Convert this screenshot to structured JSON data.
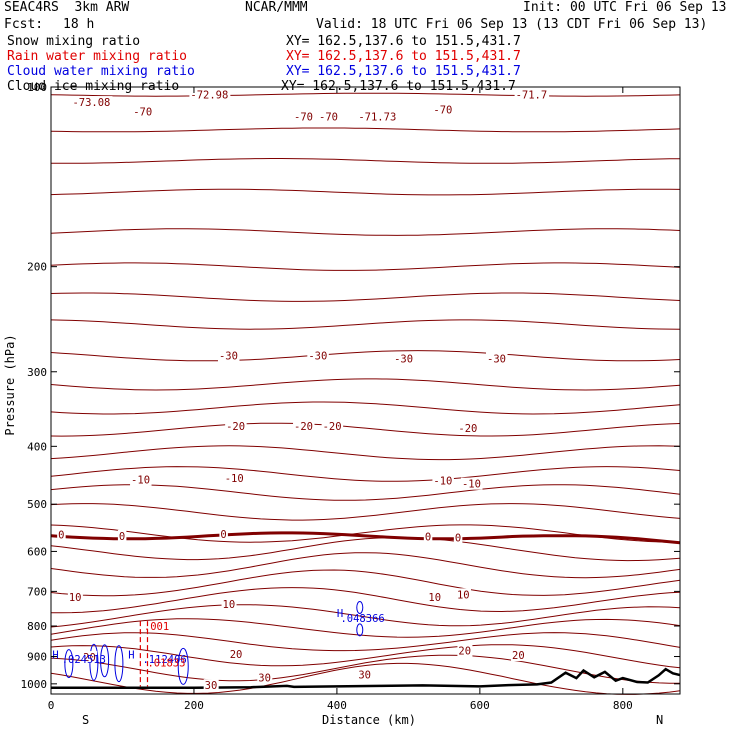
{
  "header": {
    "model": "SEAC4RS  3km ARW",
    "center": "NCAR/MMM",
    "init": "Init: 00 UTC Fri 06 Sep 13",
    "fcst_label": "Fcst:",
    "fcst_value": "18 h",
    "valid": "Valid: 18 UTC Fri 06 Sep 13 (13 CDT Fri 06 Sep 13)"
  },
  "fields": [
    {
      "name": "Snow mixing ratio",
      "xy": "XY= 162.5,137.6 to 151.5,431.7",
      "color": "#000000"
    },
    {
      "name": "Rain water mixing ratio",
      "xy": "XY= 162.5,137.6 to 151.5,431.7",
      "color": "#e00000"
    },
    {
      "name": "Cloud water mixing ratio",
      "xy": "XY= 162.5,137.6 to 151.5,431.7",
      "color": "#0000e0"
    },
    {
      "name": "Cloud ice mixing ratio",
      "xy": "XY= 162.5,137.6 to 151.5,431.7",
      "color": "#000000"
    }
  ],
  "colors": {
    "isotherm": "#800000",
    "zero_isotherm": "#800000",
    "rain": "#e00000",
    "cloud_water": "#0000e0",
    "terrain": "#000000"
  },
  "chart_data": {
    "type": "line",
    "xlabel": "Distance (km)",
    "ylabel": "Pressure (hPa)",
    "xlim": [
      0,
      880
    ],
    "ylim": [
      1040,
      100
    ],
    "y_scale": "log (pressure)",
    "xticks": [
      0,
      200,
      400,
      600,
      800
    ],
    "yticks": [
      100,
      200,
      300,
      400,
      500,
      600,
      700,
      800,
      900,
      1000
    ],
    "xtick_labels": [
      "0",
      "200",
      "400",
      "600",
      "800"
    ],
    "ytick_labels": [
      "100",
      "200",
      "300",
      "400",
      "500",
      "600",
      "700",
      "800",
      "900",
      "1000"
    ],
    "end_labels": {
      "left": "S",
      "right": "N"
    },
    "isotherm_levels_hpa": [
      103,
      118,
      133,
      150,
      175,
      200,
      225,
      250,
      282,
      315,
      345,
      375,
      410,
      445,
      478,
      515,
      560,
      600,
      640,
      685,
      730,
      775,
      815,
      860,
      905,
      950,
      990
    ],
    "temperature_labels": [
      {
        "text": "-73.08",
        "x": 30,
        "p": 106
      },
      {
        "text": "-70",
        "x": 115,
        "p": 110
      },
      {
        "text": "-72.98",
        "x": 195,
        "p": 103
      },
      {
        "text": "-70",
        "x": 340,
        "p": 112
      },
      {
        "text": "-70",
        "x": 375,
        "p": 112
      },
      {
        "text": "-71.73",
        "x": 430,
        "p": 112
      },
      {
        "text": "-70",
        "x": 535,
        "p": 109
      },
      {
        "text": "-71.7",
        "x": 650,
        "p": 103
      },
      {
        "text": "-30",
        "x": 235,
        "p": 282
      },
      {
        "text": "-30",
        "x": 360,
        "p": 282
      },
      {
        "text": "-30",
        "x": 480,
        "p": 285
      },
      {
        "text": "-30",
        "x": 610,
        "p": 285
      },
      {
        "text": "-20",
        "x": 245,
        "p": 370
      },
      {
        "text": "-20",
        "x": 340,
        "p": 370
      },
      {
        "text": "-20",
        "x": 380,
        "p": 370
      },
      {
        "text": "-20",
        "x": 570,
        "p": 373
      },
      {
        "text": "-10",
        "x": 112,
        "p": 455
      },
      {
        "text": "-10",
        "x": 243,
        "p": 452
      },
      {
        "text": "-10",
        "x": 535,
        "p": 456
      },
      {
        "text": "-10",
        "x": 575,
        "p": 462
      },
      {
        "text": "0",
        "x": 10,
        "p": 562
      },
      {
        "text": "0",
        "x": 95,
        "p": 565
      },
      {
        "text": "0",
        "x": 237,
        "p": 561
      },
      {
        "text": "0",
        "x": 523,
        "p": 566
      },
      {
        "text": "0",
        "x": 565,
        "p": 569
      },
      {
        "text": "10",
        "x": 25,
        "p": 715
      },
      {
        "text": "10",
        "x": 240,
        "p": 735
      },
      {
        "text": "10",
        "x": 528,
        "p": 715
      },
      {
        "text": "10",
        "x": 568,
        "p": 708
      },
      {
        "text": "20",
        "x": 45,
        "p": 902
      },
      {
        "text": "20",
        "x": 250,
        "p": 892
      },
      {
        "text": "20",
        "x": 570,
        "p": 880
      },
      {
        "text": "20",
        "x": 645,
        "p": 895
      },
      {
        "text": "30",
        "x": 215,
        "p": 1005
      },
      {
        "text": "30",
        "x": 290,
        "p": 975
      },
      {
        "text": "30",
        "x": 430,
        "p": 965
      }
    ],
    "cloud_annotations": [
      {
        "text": "H",
        "x": 400,
        "p": 772,
        "color": "#0000e0"
      },
      {
        "text": ".048366",
        "x": 405,
        "p": 788,
        "color": "#0000e0"
      },
      {
        "text": "H",
        "x": 2,
        "p": 907,
        "color": "#0000e0"
      },
      {
        "text": ".024513",
        "x": 15,
        "p": 922,
        "color": "#0000e0"
      },
      {
        "text": "H",
        "x": 108,
        "p": 907,
        "color": "#0000e0"
      },
      {
        "text": ".112406",
        "x": 128,
        "p": 922,
        "color": "#0000e0"
      },
      {
        "text": ".001",
        "x": 130,
        "p": 812,
        "color": "#e00000"
      },
      {
        "text": ".01833",
        "x": 135,
        "p": 935,
        "color": "#e00000"
      }
    ],
    "terrain_km_p": [
      [
        0,
        1015
      ],
      [
        100,
        1015
      ],
      [
        200,
        1015
      ],
      [
        280,
        1013
      ],
      [
        330,
        1008
      ],
      [
        340,
        1012
      ],
      [
        400,
        1010
      ],
      [
        460,
        1008
      ],
      [
        520,
        1006
      ],
      [
        600,
        1010
      ],
      [
        640,
        1005
      ],
      [
        680,
        1002
      ],
      [
        700,
        995
      ],
      [
        720,
        958
      ],
      [
        735,
        978
      ],
      [
        745,
        950
      ],
      [
        760,
        975
      ],
      [
        775,
        955
      ],
      [
        790,
        988
      ],
      [
        800,
        978
      ],
      [
        820,
        993
      ],
      [
        835,
        995
      ],
      [
        850,
        968
      ],
      [
        860,
        945
      ],
      [
        870,
        960
      ],
      [
        880,
        967
      ]
    ]
  }
}
